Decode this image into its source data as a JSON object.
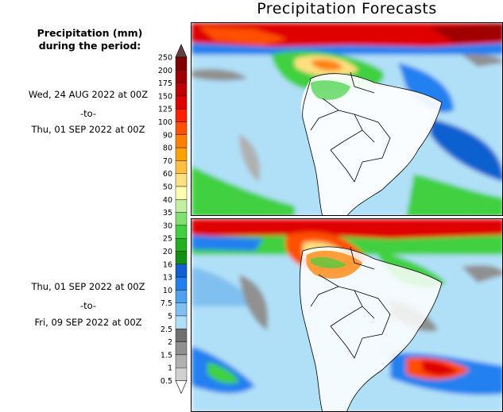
{
  "title": "Precipitation Forecasts",
  "legend": {
    "title_line1": "Precipitation (mm)",
    "title_line2": "during the period:",
    "levels": [
      "250",
      "200",
      "175",
      "150",
      "125",
      "100",
      "90",
      "80",
      "70",
      "60",
      "50",
      "40",
      "35",
      "30",
      "25",
      "20",
      "16",
      "13",
      "10",
      "7.5",
      "5",
      "2.5",
      "2",
      "1.5",
      "1",
      "0.5"
    ],
    "colors": [
      "#800000",
      "#a00000",
      "#c00000",
      "#e00000",
      "#ff2000",
      "#ff5000",
      "#ff8000",
      "#ffa000",
      "#ffc040",
      "#ffe080",
      "#ffffb0",
      "#c0f0a0",
      "#80e070",
      "#40d040",
      "#20b020",
      "#109010",
      "#1060d0",
      "#2080f0",
      "#50a0f0",
      "#80c0f0",
      "#b0e0f8",
      "#707070",
      "#909090",
      "#b0b0b0",
      "#d0d0d0",
      "#ffffff"
    ]
  },
  "periods": [
    {
      "start": "Wed, 24 AUG 2022 at 00Z",
      "sep": "-to-",
      "end": "Thu, 01 SEP 2022 at 00Z"
    },
    {
      "start": "Thu, 01 SEP 2022 at 00Z",
      "sep": "-to-",
      "end": "Fri, 09 SEP 2022 at 00Z"
    }
  ]
}
